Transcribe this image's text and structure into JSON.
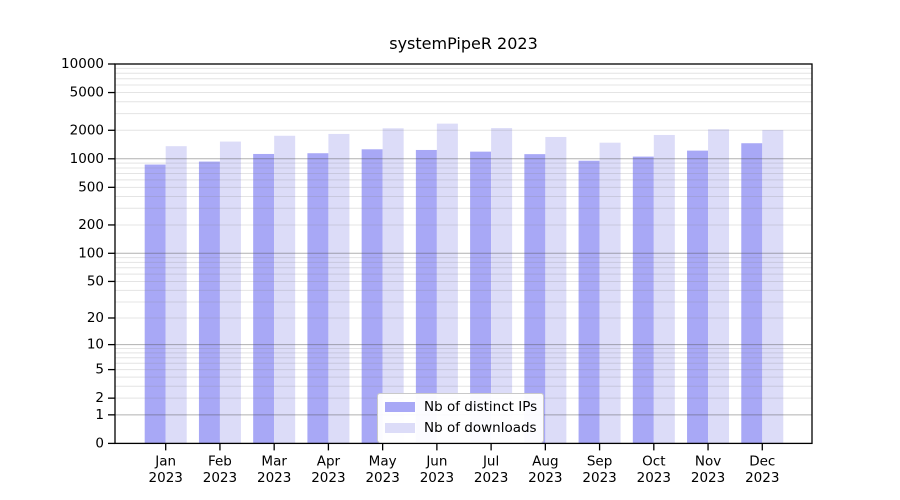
{
  "chart_data": {
    "type": "bar",
    "title": "systemPipeR 2023",
    "categories": [
      "Jan\n2023",
      "Feb\n2023",
      "Mar\n2023",
      "Apr\n2023",
      "May\n2023",
      "Jun\n2023",
      "Jul\n2023",
      "Aug\n2023",
      "Sep\n2023",
      "Oct\n2023",
      "Nov\n2023",
      "Dec\n2023"
    ],
    "series": [
      {
        "name": "Nb of distinct IPs",
        "color": "#a8a8f6",
        "values": [
          870,
          935,
          1125,
          1145,
          1260,
          1240,
          1190,
          1120,
          955,
          1055,
          1220,
          1460
        ]
      },
      {
        "name": "Nb of downloads",
        "color": "#dcdcf8",
        "values": [
          1360,
          1520,
          1750,
          1830,
          2100,
          2350,
          2110,
          1700,
          1480,
          1785,
          2050,
          2015
        ]
      }
    ],
    "yticks": [
      10000,
      5000,
      2000,
      1000,
      500,
      200,
      100,
      50,
      20,
      10,
      5,
      2,
      1,
      0
    ],
    "ylim": [
      0,
      10000
    ],
    "yscale": "log1p",
    "grid": true,
    "legend_position": "lower center",
    "colors": {
      "frame": "#000000",
      "tick_label": "#000000",
      "major_grid": "rgba(80,80,80,0.45)",
      "minor_grid": "rgba(130,130,130,0.22)"
    }
  }
}
